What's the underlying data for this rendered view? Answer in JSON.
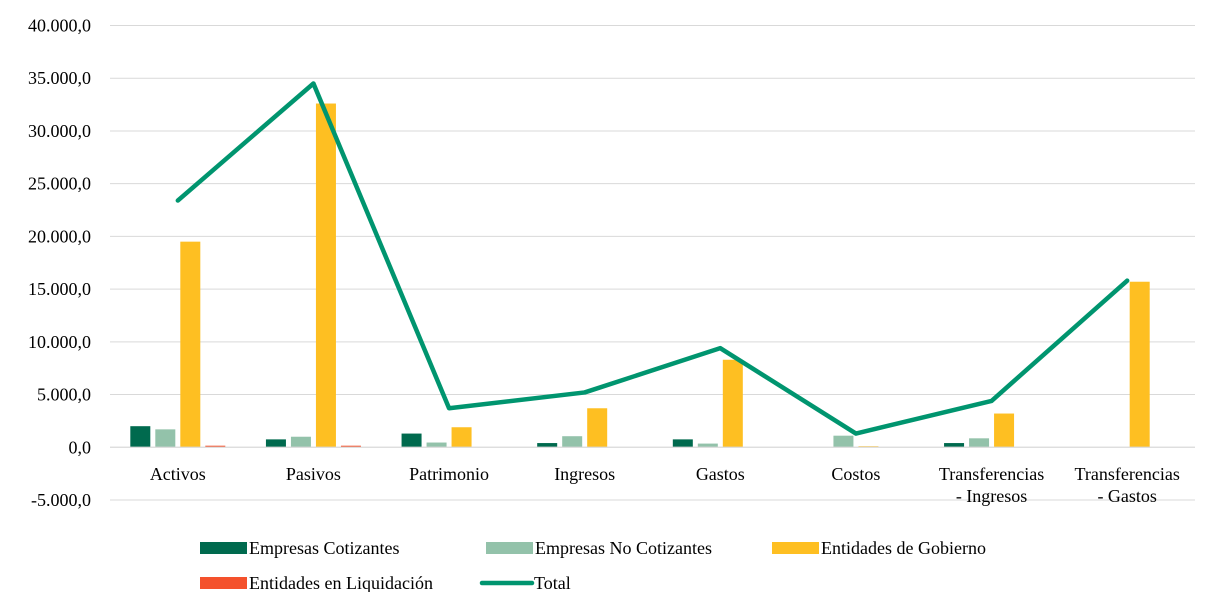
{
  "chart_data": {
    "type": "bar",
    "categories": [
      [
        "Activos"
      ],
      [
        "Pasivos"
      ],
      [
        "Patrimonio"
      ],
      [
        "Ingresos"
      ],
      [
        "Gastos"
      ],
      [
        "Costos"
      ],
      [
        "Transferencias",
        "- Ingresos"
      ],
      [
        "Transferencias",
        "- Gastos"
      ]
    ],
    "ylim": [
      -5000,
      40000
    ],
    "yticks": [
      -5000,
      0,
      5000,
      10000,
      15000,
      20000,
      25000,
      30000,
      35000,
      40000
    ],
    "ytick_labels": [
      "-5.000,0",
      "0,0",
      "5.000,0",
      "10.000,0",
      "15.000,0",
      "20.000,0",
      "25.000,0",
      "30.000,0",
      "35.000,0",
      "40.000,0"
    ],
    "grid": true,
    "legend_position": "bottom",
    "series": [
      {
        "name": "Empresas Cotizantes",
        "type": "bar",
        "color": "#006A4E",
        "values": [
          2000,
          750,
          1300,
          400,
          750,
          0,
          400,
          0
        ]
      },
      {
        "name": "Empresas No Cotizantes",
        "type": "bar",
        "color": "#93C2AA",
        "values": [
          1700,
          1000,
          450,
          1050,
          350,
          1100,
          850,
          0
        ]
      },
      {
        "name": "Entidades de Gobierno",
        "type": "bar",
        "color": "#FEBF22",
        "values": [
          19500,
          32600,
          1900,
          3700,
          8300,
          100,
          3200,
          15700
        ]
      },
      {
        "name": "Entidades en Liquidación",
        "type": "bar",
        "color": "#F4512C",
        "values": [
          150,
          150,
          0,
          0,
          0,
          0,
          0,
          0
        ]
      },
      {
        "name": "Total",
        "type": "line",
        "color": "#00956F",
        "values": [
          23400,
          34500,
          3700,
          5200,
          9400,
          1300,
          4400,
          15800
        ]
      }
    ]
  }
}
